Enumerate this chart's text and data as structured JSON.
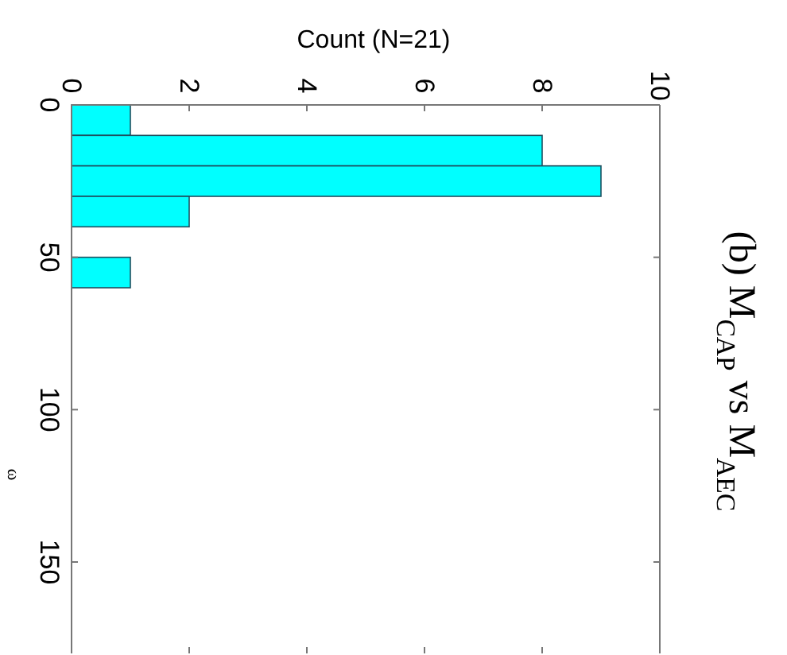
{
  "chart_data": {
    "type": "histogram",
    "orientation": "horizontal",
    "title": "(b) M$_{CAP}$ vs M$_{AEC}$",
    "xlabel": "Count (N=21)",
    "ylabel": "ω",
    "bins": [
      0,
      10,
      20,
      30,
      40,
      50,
      60
    ],
    "values": [
      1,
      8,
      9,
      2,
      0,
      1
    ],
    "color": "#00ffff",
    "xlim": [
      0,
      10
    ],
    "xticks": [
      0,
      2,
      4,
      6,
      8,
      10
    ],
    "ylim": [
      180,
      0
    ],
    "yticks": [
      0,
      50,
      100,
      150
    ],
    "grid": false
  }
}
